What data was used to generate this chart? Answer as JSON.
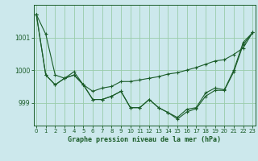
{
  "xlabel": "Graphe pression niveau de la mer (hPa)",
  "background_color": "#cce8ec",
  "grid_color": "#99ccaa",
  "line_color": "#1a5c28",
  "x_ticks": [
    0,
    1,
    2,
    3,
    4,
    5,
    6,
    7,
    8,
    9,
    10,
    11,
    12,
    13,
    14,
    15,
    16,
    17,
    18,
    19,
    20,
    21,
    22,
    23
  ],
  "y_ticks": [
    999,
    1000,
    1001
  ],
  "ylim": [
    998.3,
    1002.0
  ],
  "xlim": [
    -0.3,
    23.3
  ],
  "series1": [
    1001.7,
    1001.1,
    999.85,
    999.75,
    999.95,
    999.55,
    999.1,
    999.1,
    999.2,
    999.35,
    998.85,
    998.85,
    999.1,
    998.85,
    998.7,
    998.55,
    998.8,
    998.85,
    999.3,
    999.45,
    999.4,
    1000.0,
    1000.85,
    1001.15
  ],
  "series2": [
    1001.7,
    999.85,
    999.55,
    999.75,
    999.85,
    999.55,
    999.35,
    999.45,
    999.5,
    999.65,
    999.65,
    999.7,
    999.75,
    999.8,
    999.88,
    999.92,
    1000.0,
    1000.08,
    1000.18,
    1000.28,
    1000.32,
    1000.48,
    1000.68,
    1001.15
  ],
  "series3": [
    1001.7,
    999.85,
    999.55,
    999.75,
    999.85,
    999.55,
    999.1,
    999.1,
    999.2,
    999.35,
    998.85,
    998.85,
    999.1,
    998.85,
    998.7,
    998.5,
    998.72,
    998.82,
    999.2,
    999.38,
    999.38,
    999.95,
    1000.78,
    1001.15
  ]
}
